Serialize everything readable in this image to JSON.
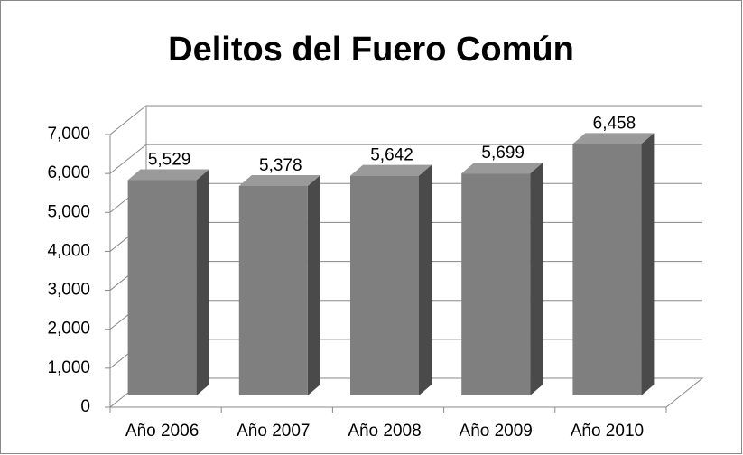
{
  "chart_data": {
    "type": "bar",
    "title": "Delitos del Fuero Común",
    "categories": [
      "Año 2006",
      "Año 2007",
      "Año 2008",
      "Año 2009",
      "Año 2010"
    ],
    "values": [
      5529,
      5378,
      5642,
      5699,
      6458
    ],
    "value_labels": [
      "5,529",
      "5,378",
      "5,642",
      "5,699",
      "6,458"
    ],
    "color": "#7f7f7f",
    "ylim": [
      0,
      7000
    ],
    "yticks": [
      0,
      {
        "value": 1000,
        "label": "1,000"
      },
      {
        "value": 2000,
        "label": "2,000"
      },
      {
        "value": 3000,
        "label": "3,000"
      },
      {
        "value": 4000,
        "label": "4,000"
      },
      {
        "value": 5000,
        "label": "5,000"
      },
      {
        "value": 6000,
        "label": "6,000"
      },
      {
        "value": 7000,
        "label": "7,000"
      }
    ],
    "grid": true
  }
}
